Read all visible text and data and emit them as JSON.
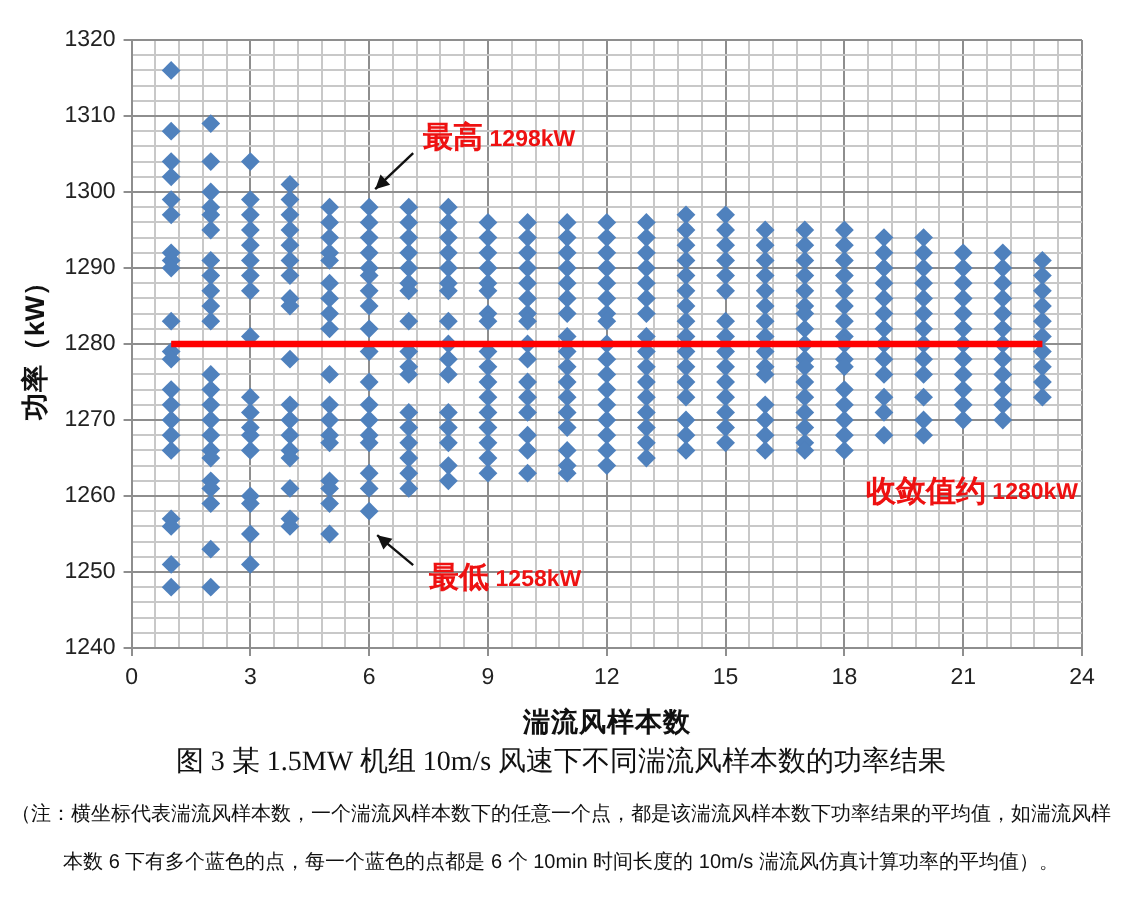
{
  "chart_data": {
    "type": "scatter",
    "title": "图 3 某 1.5MW 机组 10m/s 风速下不同湍流风样本数的功率结果",
    "xlabel": "湍流风样本数",
    "ylabel": "功率（kW）",
    "xlim": [
      0,
      24
    ],
    "xticks": [
      0,
      {
        "value": 0.6,
        "label": null
      },
      {
        "value": 1.2,
        "label": null
      },
      {
        "value": 1.8,
        "label": null
      },
      {
        "value": 2.4,
        "label": null
      },
      3,
      {
        "value": 3.6,
        "label": null
      },
      {
        "value": 4.2,
        "label": null
      },
      {
        "value": 4.8,
        "label": null
      },
      {
        "value": 5.4,
        "label": null
      },
      6,
      {
        "value": 6.6,
        "label": null
      },
      {
        "value": 7.2,
        "label": null
      },
      {
        "value": 7.8,
        "label": null
      },
      {
        "value": 8.4,
        "label": null
      },
      9,
      {
        "value": 9.6,
        "label": null
      },
      {
        "value": 10.2,
        "label": null
      },
      {
        "value": 10.8,
        "label": null
      },
      {
        "value": 11.4,
        "label": null
      },
      12,
      {
        "value": 12.6,
        "label": null
      },
      {
        "value": 13.2,
        "label": null
      },
      {
        "value": 13.8,
        "label": null
      },
      {
        "value": 14.4,
        "label": null
      },
      15,
      {
        "value": 15.6,
        "label": null
      },
      {
        "value": 16.2,
        "label": null
      },
      {
        "value": 16.8,
        "label": null
      },
      {
        "value": 17.4,
        "label": null
      },
      18,
      {
        "value": 18.6,
        "label": null
      },
      {
        "value": 19.2,
        "label": null
      },
      {
        "value": 19.8,
        "label": null
      },
      {
        "value": 20.4,
        "label": null
      },
      21,
      {
        "value": 21.6,
        "label": null
      },
      {
        "value": 22.2,
        "label": null
      },
      {
        "value": 22.8,
        "label": null
      },
      {
        "value": 23.4,
        "label": null
      },
      24
    ],
    "ylim": [
      1240,
      1320
    ],
    "yticks": [
      1240,
      {
        "value": 1242,
        "label": null
      },
      {
        "value": 1244,
        "label": null
      },
      {
        "value": 1246,
        "label": null
      },
      {
        "value": 1248,
        "label": null
      },
      1250,
      {
        "value": 1252,
        "label": null
      },
      {
        "value": 1254,
        "label": null
      },
      {
        "value": 1256,
        "label": null
      },
      {
        "value": 1258,
        "label": null
      },
      1260,
      {
        "value": 1262,
        "label": null
      },
      {
        "value": 1264,
        "label": null
      },
      {
        "value": 1266,
        "label": null
      },
      {
        "value": 1268,
        "label": null
      },
      1270,
      {
        "value": 1272,
        "label": null
      },
      {
        "value": 1274,
        "label": null
      },
      {
        "value": 1276,
        "label": null
      },
      {
        "value": 1278,
        "label": null
      },
      1280,
      {
        "value": 1282,
        "label": null
      },
      {
        "value": 1284,
        "label": null
      },
      {
        "value": 1286,
        "label": null
      },
      {
        "value": 1288,
        "label": null
      },
      1290,
      {
        "value": 1292,
        "label": null
      },
      {
        "value": 1294,
        "label": null
      },
      {
        "value": 1296,
        "label": null
      },
      {
        "value": 1298,
        "label": null
      },
      1300,
      {
        "value": 1302,
        "label": null
      },
      {
        "value": 1304,
        "label": null
      },
      {
        "value": 1306,
        "label": null
      },
      {
        "value": 1308,
        "label": null
      },
      1310,
      {
        "value": 1312,
        "label": null
      },
      {
        "value": 1314,
        "label": null
      },
      {
        "value": 1316,
        "label": null
      },
      {
        "value": 1318,
        "label": null
      },
      1320
    ],
    "grid": true,
    "marker": "diamond",
    "series": [
      {
        "type": "scatter",
        "color": "#4f81bd",
        "x": [
          1,
          1,
          1,
          1,
          1,
          1,
          1,
          1,
          1,
          1,
          1,
          1,
          1,
          1,
          1,
          1,
          1,
          1,
          1,
          1,
          1,
          2,
          2,
          2,
          2,
          2,
          2,
          2,
          2,
          2,
          2,
          2,
          2,
          2,
          2,
          2,
          2,
          2,
          2,
          2,
          2,
          2,
          2,
          2,
          3,
          3,
          3,
          3,
          3,
          3,
          3,
          3,
          3,
          3,
          3,
          3,
          3,
          3,
          3,
          3,
          3,
          3,
          4,
          4,
          4,
          4,
          4,
          4,
          4,
          4,
          4,
          4,
          4,
          4,
          4,
          4,
          4,
          4,
          4,
          4,
          5,
          5,
          5,
          5,
          5,
          5,
          5,
          5,
          5,
          5,
          5,
          5,
          5,
          5,
          5,
          5,
          5,
          5,
          6,
          6,
          6,
          6,
          6,
          6,
          6,
          6,
          6,
          6,
          6,
          6,
          6,
          6,
          6,
          6,
          6,
          6,
          7,
          7,
          7,
          7,
          7,
          7,
          7,
          7,
          7,
          7,
          7,
          7,
          7,
          7,
          7,
          7,
          7,
          8,
          8,
          8,
          8,
          8,
          8,
          8,
          8,
          8,
          8,
          8,
          8,
          8,
          8,
          8,
          8,
          9,
          9,
          9,
          9,
          9,
          9,
          9,
          9,
          9,
          9,
          9,
          9,
          9,
          9,
          9,
          9,
          9,
          10,
          10,
          10,
          10,
          10,
          10,
          10,
          10,
          10,
          10,
          10,
          10,
          10,
          10,
          10,
          10,
          11,
          11,
          11,
          11,
          11,
          11,
          11,
          11,
          11,
          11,
          11,
          11,
          11,
          11,
          11,
          11,
          11,
          12,
          12,
          12,
          12,
          12,
          12,
          12,
          12,
          12,
          12,
          12,
          12,
          12,
          12,
          12,
          12,
          12,
          13,
          13,
          13,
          13,
          13,
          13,
          13,
          13,
          13,
          13,
          13,
          13,
          13,
          13,
          13,
          13,
          14,
          14,
          14,
          14,
          14,
          14,
          14,
          14,
          14,
          14,
          14,
          14,
          14,
          14,
          14,
          14,
          15,
          15,
          15,
          15,
          15,
          15,
          15,
          15,
          15,
          15,
          15,
          15,
          15,
          15,
          15,
          16,
          16,
          16,
          16,
          16,
          16,
          16,
          16,
          16,
          16,
          16,
          16,
          16,
          16,
          16,
          17,
          17,
          17,
          17,
          17,
          17,
          17,
          17,
          17,
          17,
          17,
          17,
          17,
          17,
          17,
          17,
          17,
          18,
          18,
          18,
          18,
          18,
          18,
          18,
          18,
          18,
          18,
          18,
          18,
          18,
          18,
          18,
          18,
          19,
          19,
          19,
          19,
          19,
          19,
          19,
          19,
          19,
          19,
          19,
          19,
          19,
          20,
          20,
          20,
          20,
          20,
          20,
          20,
          20,
          20,
          20,
          20,
          20,
          20,
          21,
          21,
          21,
          21,
          21,
          21,
          21,
          21,
          21,
          21,
          21,
          21,
          22,
          22,
          22,
          22,
          22,
          22,
          22,
          22,
          22,
          22,
          22,
          22,
          23,
          23,
          23,
          23,
          23,
          23,
          23,
          23,
          23,
          23
        ],
        "values": [
          1316,
          1308,
          1304,
          1302,
          1299,
          1297,
          1292,
          1291,
          1290,
          1283,
          1279,
          1278,
          1274,
          1272,
          1270,
          1268,
          1266,
          1257,
          1256,
          1251,
          1248,
          1309,
          1304,
          1300,
          1298,
          1297,
          1295,
          1291,
          1289,
          1287,
          1285,
          1283,
          1276,
          1274,
          1272,
          1270,
          1268,
          1266,
          1265,
          1262,
          1261,
          1259,
          1253,
          1248,
          1304,
          1299,
          1297,
          1295,
          1293,
          1291,
          1289,
          1287,
          1281,
          1273,
          1271,
          1269,
          1268,
          1266,
          1260,
          1259,
          1255,
          1251,
          1301,
          1299,
          1297,
          1295,
          1293,
          1291,
          1289,
          1286,
          1285,
          1278,
          1272,
          1270,
          1268,
          1266,
          1265,
          1261,
          1257,
          1256,
          1298,
          1296,
          1294,
          1292,
          1291,
          1288,
          1286,
          1284,
          1282,
          1276,
          1272,
          1270,
          1268,
          1267,
          1262,
          1261,
          1259,
          1255,
          1298,
          1296,
          1294,
          1292,
          1290,
          1289,
          1287,
          1285,
          1282,
          1279,
          1275,
          1272,
          1270,
          1268,
          1267,
          1263,
          1261,
          1258,
          1298,
          1296,
          1294,
          1292,
          1290,
          1288,
          1287,
          1283,
          1279,
          1277,
          1276,
          1271,
          1269,
          1267,
          1265,
          1263,
          1261,
          1298,
          1296,
          1294,
          1292,
          1290,
          1288,
          1287,
          1283,
          1280,
          1278,
          1276,
          1271,
          1269,
          1267,
          1264,
          1262,
          1296,
          1294,
          1292,
          1290,
          1288,
          1287,
          1284,
          1283,
          1279,
          1277,
          1275,
          1273,
          1271,
          1269,
          1267,
          1265,
          1263,
          1296,
          1294,
          1292,
          1290,
          1288,
          1286,
          1284,
          1283,
          1280,
          1278,
          1275,
          1273,
          1271,
          1268,
          1266,
          1263,
          1296,
          1294,
          1292,
          1290,
          1288,
          1286,
          1284,
          1281,
          1279,
          1277,
          1275,
          1273,
          1271,
          1269,
          1266,
          1264,
          1263,
          1296,
          1294,
          1292,
          1290,
          1288,
          1286,
          1284,
          1283,
          1280,
          1278,
          1276,
          1274,
          1272,
          1270,
          1268,
          1266,
          1264,
          1296,
          1294,
          1292,
          1290,
          1288,
          1286,
          1284,
          1281,
          1279,
          1277,
          1275,
          1273,
          1271,
          1269,
          1267,
          1265,
          1297,
          1295,
          1293,
          1291,
          1289,
          1287,
          1285,
          1283,
          1281,
          1279,
          1277,
          1275,
          1273,
          1270,
          1268,
          1266,
          1297,
          1295,
          1293,
          1291,
          1289,
          1287,
          1283,
          1281,
          1279,
          1277,
          1275,
          1273,
          1271,
          1269,
          1267,
          1295,
          1293,
          1291,
          1289,
          1287,
          1285,
          1283,
          1281,
          1279,
          1277,
          1276,
          1272,
          1270,
          1268,
          1266,
          1295,
          1293,
          1291,
          1289,
          1287,
          1285,
          1284,
          1282,
          1280,
          1278,
          1277,
          1275,
          1273,
          1271,
          1269,
          1267,
          1266,
          1295,
          1293,
          1291,
          1289,
          1287,
          1285,
          1283,
          1281,
          1280,
          1278,
          1277,
          1274,
          1272,
          1270,
          1268,
          1266,
          1294,
          1292,
          1290,
          1288,
          1286,
          1284,
          1282,
          1280,
          1278,
          1276,
          1273,
          1271,
          1268,
          1294,
          1292,
          1290,
          1288,
          1286,
          1284,
          1282,
          1280,
          1278,
          1276,
          1273,
          1270,
          1268,
          1292,
          1290,
          1288,
          1286,
          1284,
          1282,
          1280,
          1278,
          1276,
          1274,
          1272,
          1270,
          1292,
          1290,
          1288,
          1286,
          1284,
          1282,
          1280,
          1278,
          1276,
          1274,
          1272,
          1270,
          1291,
          1289,
          1287,
          1285,
          1283,
          1281,
          1279,
          1277,
          1275,
          1273
        ]
      },
      {
        "type": "line",
        "color": "#ff0000",
        "marker": "none",
        "line_style": "solid",
        "x": [
          1,
          23
        ],
        "values": [
          1280,
          1280
        ]
      }
    ],
    "annotations": [
      {
        "text": "最高 1298kW",
        "x": 6,
        "y": 1298
      },
      {
        "text": "最低 1258kW",
        "x": 6,
        "y": 1258
      },
      "收敛值约 1280kW",
      "（注：横坐标代表湍流风样本数，一个湍流风样本数下的任意一个点，都是该湍流风样本数下功率结果的平均值，如湍流风样本数 6 下有多个蓝色的点，每一个蓝色的点都是 6 个 10min 时间长度的 10m/s 湍流风仿真计算功率的平均值）。"
    ]
  }
}
